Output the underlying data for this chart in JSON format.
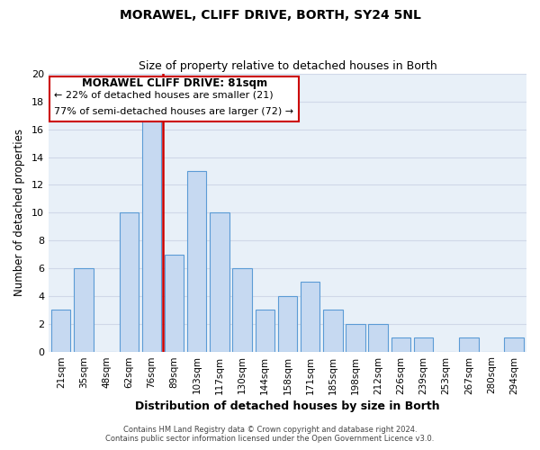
{
  "title": "MORAWEL, CLIFF DRIVE, BORTH, SY24 5NL",
  "subtitle": "Size of property relative to detached houses in Borth",
  "xlabel": "Distribution of detached houses by size in Borth",
  "ylabel": "Number of detached properties",
  "bar_labels": [
    "21sqm",
    "35sqm",
    "48sqm",
    "62sqm",
    "76sqm",
    "89sqm",
    "103sqm",
    "117sqm",
    "130sqm",
    "144sqm",
    "158sqm",
    "171sqm",
    "185sqm",
    "198sqm",
    "212sqm",
    "226sqm",
    "239sqm",
    "253sqm",
    "267sqm",
    "280sqm",
    "294sqm"
  ],
  "bar_values": [
    3,
    6,
    0,
    10,
    17,
    7,
    13,
    10,
    6,
    3,
    4,
    5,
    3,
    2,
    2,
    1,
    1,
    0,
    1,
    0,
    1
  ],
  "bar_color": "#c6d9f1",
  "bar_edgecolor": "#5b9bd5",
  "reference_line_x": 4.5,
  "reference_line_color": "#cc0000",
  "ylim": [
    0,
    20
  ],
  "yticks": [
    0,
    2,
    4,
    6,
    8,
    10,
    12,
    14,
    16,
    18,
    20
  ],
  "annotation_title": "MORAWEL CLIFF DRIVE: 81sqm",
  "annotation_line1": "← 22% of detached houses are smaller (21)",
  "annotation_line2": "77% of semi-detached houses are larger (72) →",
  "footer_line1": "Contains HM Land Registry data © Crown copyright and database right 2024.",
  "footer_line2": "Contains public sector information licensed under the Open Government Licence v3.0.",
  "grid_color": "#d0d8e8",
  "bg_color": "#e8f0f8"
}
